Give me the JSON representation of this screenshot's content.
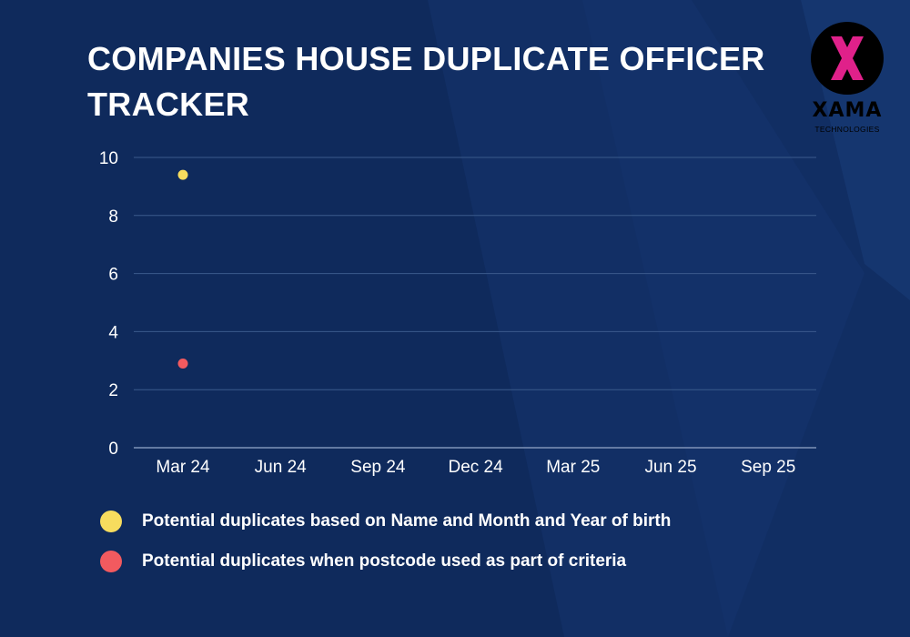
{
  "header": {
    "title_line1": "COMPANIES HOUSE DUPLICATE OFFICER",
    "title_line2": "TRACKER"
  },
  "logo": {
    "wordmark": "XAMA",
    "subtitle": "TECHNOLOGIES",
    "mark_color": "#e0218a"
  },
  "colors": {
    "background": "#0f2a5c",
    "gridline": "#3b5a8c",
    "text": "#ffffff",
    "series_name_month_year": "#f7dc5e",
    "series_postcode": "#f25a5f"
  },
  "chart_data": {
    "type": "scatter",
    "categories": [
      "Mar 24",
      "Jun 24",
      "Sep 24",
      "Dec 24",
      "Mar 25",
      "Jun 25",
      "Sep 25"
    ],
    "ylim": [
      0,
      10
    ],
    "yticks": [
      0,
      2,
      4,
      6,
      8,
      10
    ],
    "grid": true,
    "legend_position": "bottom",
    "series": [
      {
        "name": "Potential duplicates based on Name and Month and Year of birth",
        "color": "#f7dc5e",
        "points": [
          {
            "x": "Mar 24",
            "y": 9.4
          }
        ]
      },
      {
        "name": "Potential duplicates when postcode used as part of criteria",
        "color": "#f25a5f",
        "points": [
          {
            "x": "Mar 24",
            "y": 2.9
          }
        ]
      }
    ]
  }
}
